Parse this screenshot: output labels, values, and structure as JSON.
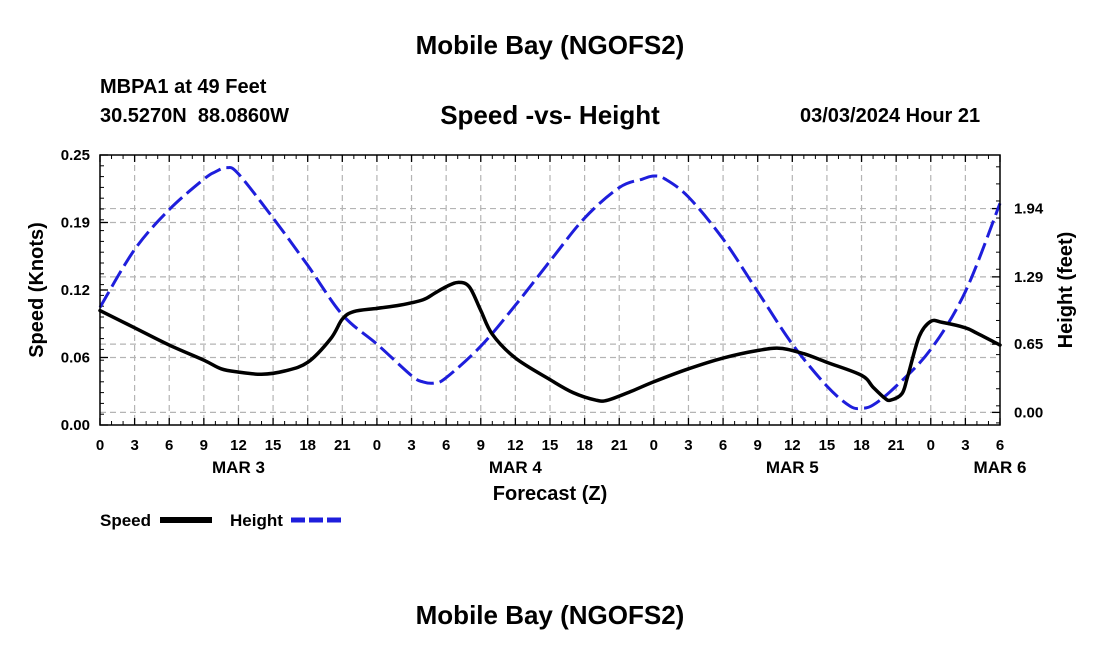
{
  "page": {
    "title_top": "Mobile Bay (NGOFS2)",
    "title_bottom": "Mobile Bay (NGOFS2)"
  },
  "header": {
    "station": "MBPA1 at 49 Feet",
    "coords": "30.5270N  88.0860W",
    "subtitle": "Speed -vs- Height",
    "datetime": "03/03/2024 Hour 21"
  },
  "chart_data": {
    "type": "line",
    "title": "Speed -vs- Height",
    "xlabel": "Forecast (Z)",
    "ylabel_left": "Speed (Knots)",
    "ylabel_right": "Height (feet)",
    "x_unit": "hours from 2024-03-03 00Z",
    "x_range": [
      0,
      78
    ],
    "x_tick_step_hours": 3,
    "x_tick_labels": [
      "0",
      "3",
      "6",
      "9",
      "12",
      "15",
      "18",
      "21",
      "0",
      "3",
      "6",
      "9",
      "12",
      "15",
      "18",
      "21",
      "0",
      "3",
      "6",
      "9",
      "12",
      "15",
      "18",
      "21",
      "0",
      "3",
      "6"
    ],
    "date_labels": [
      {
        "hour": 12,
        "label": "MAR 3"
      },
      {
        "hour": 36,
        "label": "MAR 4"
      },
      {
        "hour": 60,
        "label": "MAR 5"
      },
      {
        "hour": 78,
        "label": "MAR 6"
      }
    ],
    "ylim_left": [
      0,
      0.25
    ],
    "yticks_left": [
      "0.00",
      "0.06",
      "0.12",
      "0.19",
      "0.25"
    ],
    "ylim_right": [
      -0.12,
      2.45
    ],
    "yticks_right": [
      "0.00",
      "0.65",
      "1.29",
      "1.94"
    ],
    "grid": true,
    "legend_position": "bottom-left",
    "series": [
      {
        "name": "Speed",
        "axis": "left",
        "color": "#000000",
        "style": "solid",
        "points": [
          [
            0,
            0.106
          ],
          [
            3,
            0.09
          ],
          [
            6,
            0.074
          ],
          [
            9,
            0.06
          ],
          [
            10.5,
            0.052
          ],
          [
            12,
            0.049
          ],
          [
            14,
            0.047
          ],
          [
            16,
            0.05
          ],
          [
            18,
            0.058
          ],
          [
            20,
            0.08
          ],
          [
            21,
            0.098
          ],
          [
            22,
            0.105
          ],
          [
            24,
            0.108
          ],
          [
            26,
            0.111
          ],
          [
            28,
            0.116
          ],
          [
            29,
            0.122
          ],
          [
            30,
            0.128
          ],
          [
            31,
            0.132
          ],
          [
            32,
            0.128
          ],
          [
            33,
            0.106
          ],
          [
            34,
            0.084
          ],
          [
            36,
            0.062
          ],
          [
            39,
            0.042
          ],
          [
            41,
            0.03
          ],
          [
            43,
            0.023
          ],
          [
            44,
            0.023
          ],
          [
            46,
            0.031
          ],
          [
            48,
            0.04
          ],
          [
            51,
            0.052
          ],
          [
            54,
            0.062
          ],
          [
            57,
            0.069
          ],
          [
            59,
            0.071
          ],
          [
            61,
            0.066
          ],
          [
            63,
            0.058
          ],
          [
            66,
            0.046
          ],
          [
            67,
            0.035
          ],
          [
            68,
            0.025
          ],
          [
            68.5,
            0.023
          ],
          [
            69.5,
            0.029
          ],
          [
            70,
            0.045
          ],
          [
            71,
            0.082
          ],
          [
            72,
            0.096
          ],
          [
            73,
            0.095
          ],
          [
            75,
            0.09
          ],
          [
            76,
            0.085
          ],
          [
            78,
            0.074
          ]
        ]
      },
      {
        "name": "Height",
        "axis": "right",
        "color": "#1e1edc",
        "style": "dashed",
        "points": [
          [
            0,
            1.0
          ],
          [
            3,
            1.55
          ],
          [
            6,
            1.93
          ],
          [
            9,
            2.22
          ],
          [
            10,
            2.29
          ],
          [
            11,
            2.33
          ],
          [
            12,
            2.27
          ],
          [
            15,
            1.85
          ],
          [
            18,
            1.4
          ],
          [
            21,
            0.93
          ],
          [
            24,
            0.65
          ],
          [
            27,
            0.35
          ],
          [
            28,
            0.29
          ],
          [
            29,
            0.28
          ],
          [
            30,
            0.33
          ],
          [
            33,
            0.63
          ],
          [
            36,
            1.02
          ],
          [
            39,
            1.44
          ],
          [
            42,
            1.85
          ],
          [
            45,
            2.14
          ],
          [
            47,
            2.22
          ],
          [
            48,
            2.25
          ],
          [
            49,
            2.22
          ],
          [
            51,
            2.05
          ],
          [
            54,
            1.65
          ],
          [
            57,
            1.15
          ],
          [
            60,
            0.65
          ],
          [
            63,
            0.25
          ],
          [
            65,
            0.06
          ],
          [
            66,
            0.04
          ],
          [
            67,
            0.07
          ],
          [
            69,
            0.25
          ],
          [
            72,
            0.6
          ],
          [
            75,
            1.15
          ],
          [
            78,
            1.99
          ]
        ]
      }
    ]
  }
}
